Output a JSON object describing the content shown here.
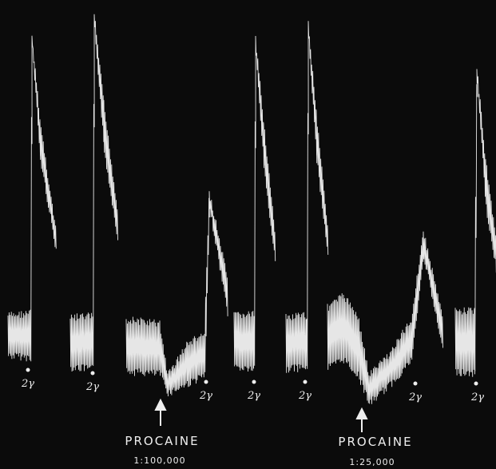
{
  "markers": [
    "2γ",
    "2γ",
    "2γ",
    "2γ",
    "2γ",
    "2γ",
    "2γ"
  ],
  "annotations": [
    {
      "label": "PROCAINE",
      "concentration": "1:100,000"
    },
    {
      "label": "PROCAINE",
      "concentration": "1:25,000"
    }
  ]
}
